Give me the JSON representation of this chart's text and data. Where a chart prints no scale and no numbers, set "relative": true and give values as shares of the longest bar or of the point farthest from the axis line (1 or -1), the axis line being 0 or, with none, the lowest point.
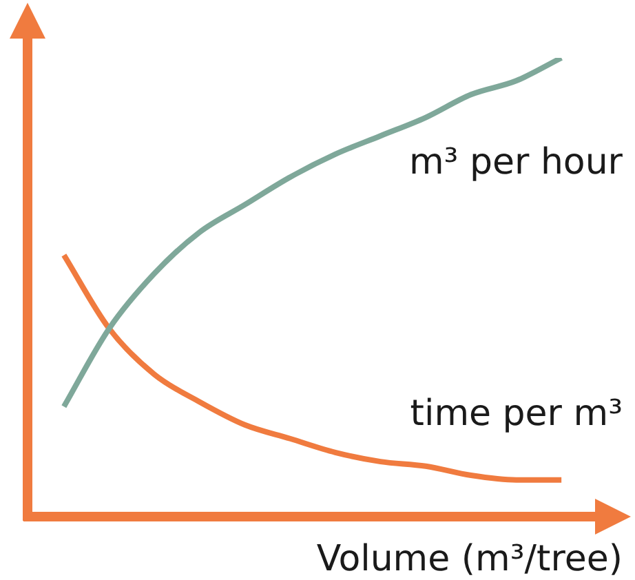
{
  "chart_data": {
    "type": "line",
    "relative": true,
    "xlabel": "Volume (m³/tree)",
    "legend": false,
    "marker": "none",
    "categories": [
      null,
      null,
      null,
      null,
      null,
      null,
      null,
      null,
      null,
      null,
      null,
      null
    ],
    "series": [
      {
        "name": "m³ per hour",
        "color": "#7fa89a",
        "values": [
          0.24,
          0.41,
          0.53,
          0.62,
          0.68,
          0.74,
          0.79,
          0.83,
          0.87,
          0.92,
          0.95,
          1.0
        ]
      },
      {
        "name": "time per m³",
        "color": "#f07b3f",
        "values": [
          0.57,
          0.41,
          0.31,
          0.25,
          0.2,
          0.17,
          0.14,
          0.12,
          0.11,
          0.09,
          0.08,
          0.08
        ]
      }
    ]
  }
}
